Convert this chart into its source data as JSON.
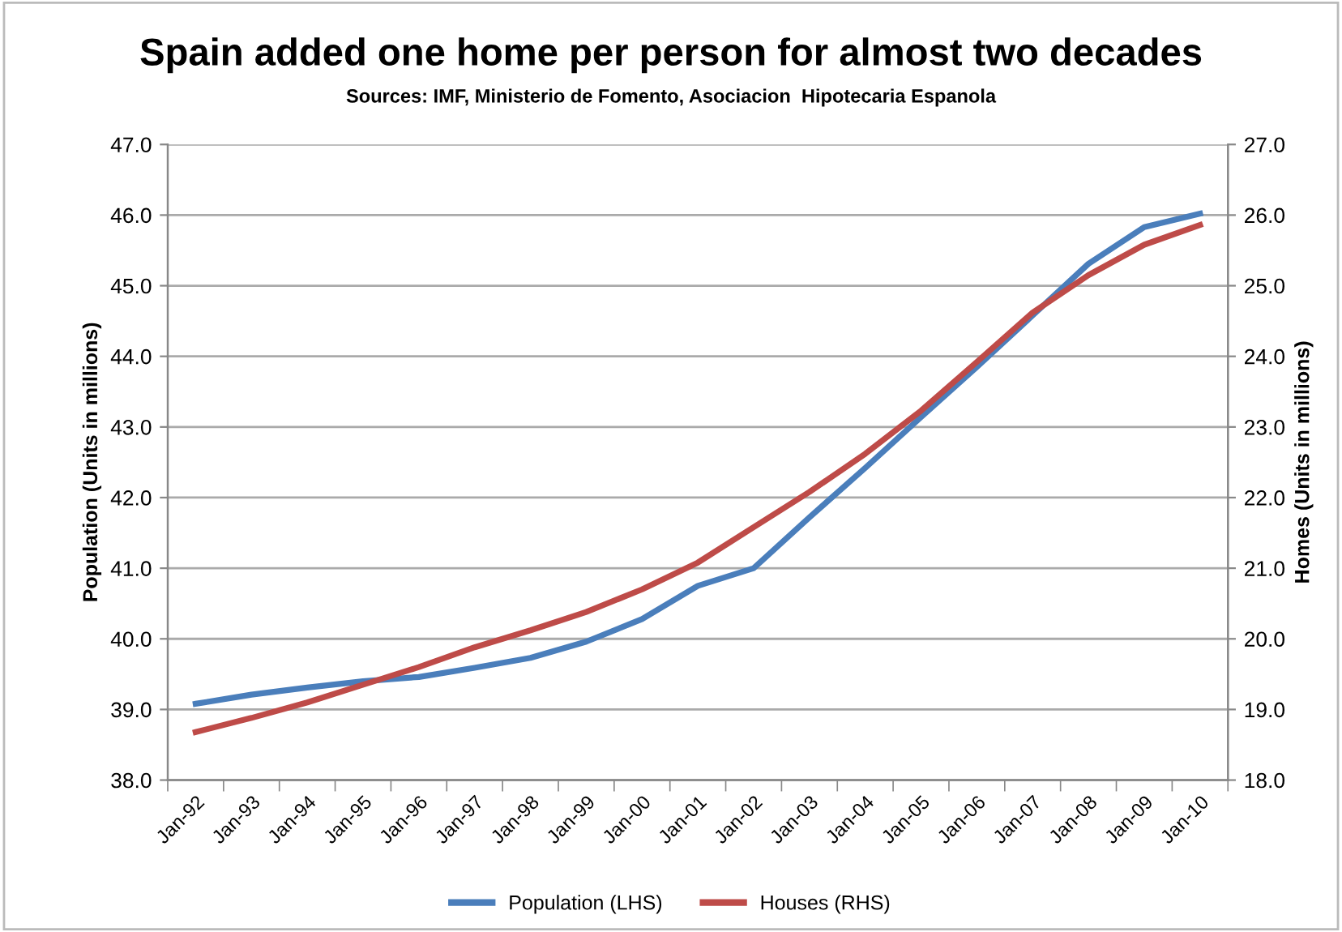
{
  "chart_data": {
    "type": "line",
    "title": "Spain added one home per person for almost two decades",
    "subtitle": "Sources: IMF, Ministerio de Fomento, Asociacion  Hipotecaria Espanola",
    "ylabel": "Population (Units in millions)",
    "y2label": "Homes (Units in millions)",
    "categories": [
      "Jan-92",
      "Jan-93",
      "Jan-94",
      "Jan-95",
      "Jan-96",
      "Jan-97",
      "Jan-98",
      "Jan-99",
      "Jan-00",
      "Jan-01",
      "Jan-02",
      "Jan-03",
      "Jan-04",
      "Jan-05",
      "Jan-06",
      "Jan-07",
      "Jan-08",
      "Jan-09",
      "Jan-10"
    ],
    "series": [
      {
        "name": "Population (LHS)",
        "color": "#4a7ebb",
        "values": [
          39.08,
          39.21,
          39.31,
          39.4,
          39.46,
          39.59,
          39.73,
          39.96,
          40.28,
          40.75,
          41.0,
          41.72,
          42.42,
          43.14,
          43.85,
          44.58,
          45.31,
          45.83,
          46.02
        ]
      },
      {
        "name": "Houses (RHS)",
        "color": "#be4b48",
        "axis": "y2",
        "values": [
          18.68,
          18.88,
          19.1,
          19.35,
          19.6,
          19.88,
          20.12,
          20.38,
          20.7,
          21.08,
          21.58,
          22.08,
          22.62,
          23.23,
          23.92,
          24.62,
          25.15,
          25.58,
          25.86
        ]
      }
    ],
    "ylim": [
      38,
      47
    ],
    "yticks": [
      {
        "value": 38,
        "label": "38.0"
      },
      {
        "value": 39,
        "label": "39.0"
      },
      {
        "value": 40,
        "label": "40.0"
      },
      {
        "value": 41,
        "label": "41.0"
      },
      {
        "value": 42,
        "label": "42.0"
      },
      {
        "value": 43,
        "label": "43.0"
      },
      {
        "value": 44,
        "label": "44.0"
      },
      {
        "value": 45,
        "label": "45.0"
      },
      {
        "value": 46,
        "label": "46.0"
      },
      {
        "value": 47,
        "label": "47.0"
      }
    ],
    "y2lim": [
      18,
      27
    ],
    "y2ticks": [
      {
        "value": 18,
        "label": "18.0"
      },
      {
        "value": 19,
        "label": "19.0"
      },
      {
        "value": 20,
        "label": "20.0"
      },
      {
        "value": 21,
        "label": "21.0"
      },
      {
        "value": 22,
        "label": "22.0"
      },
      {
        "value": 23,
        "label": "23.0"
      },
      {
        "value": 24,
        "label": "24.0"
      },
      {
        "value": 25,
        "label": "25.0"
      },
      {
        "value": 26,
        "label": "26.0"
      },
      {
        "value": 27,
        "label": "27.0"
      }
    ],
    "grid": "y",
    "legend": "bottom",
    "marker": "none",
    "line_style": "solid"
  }
}
